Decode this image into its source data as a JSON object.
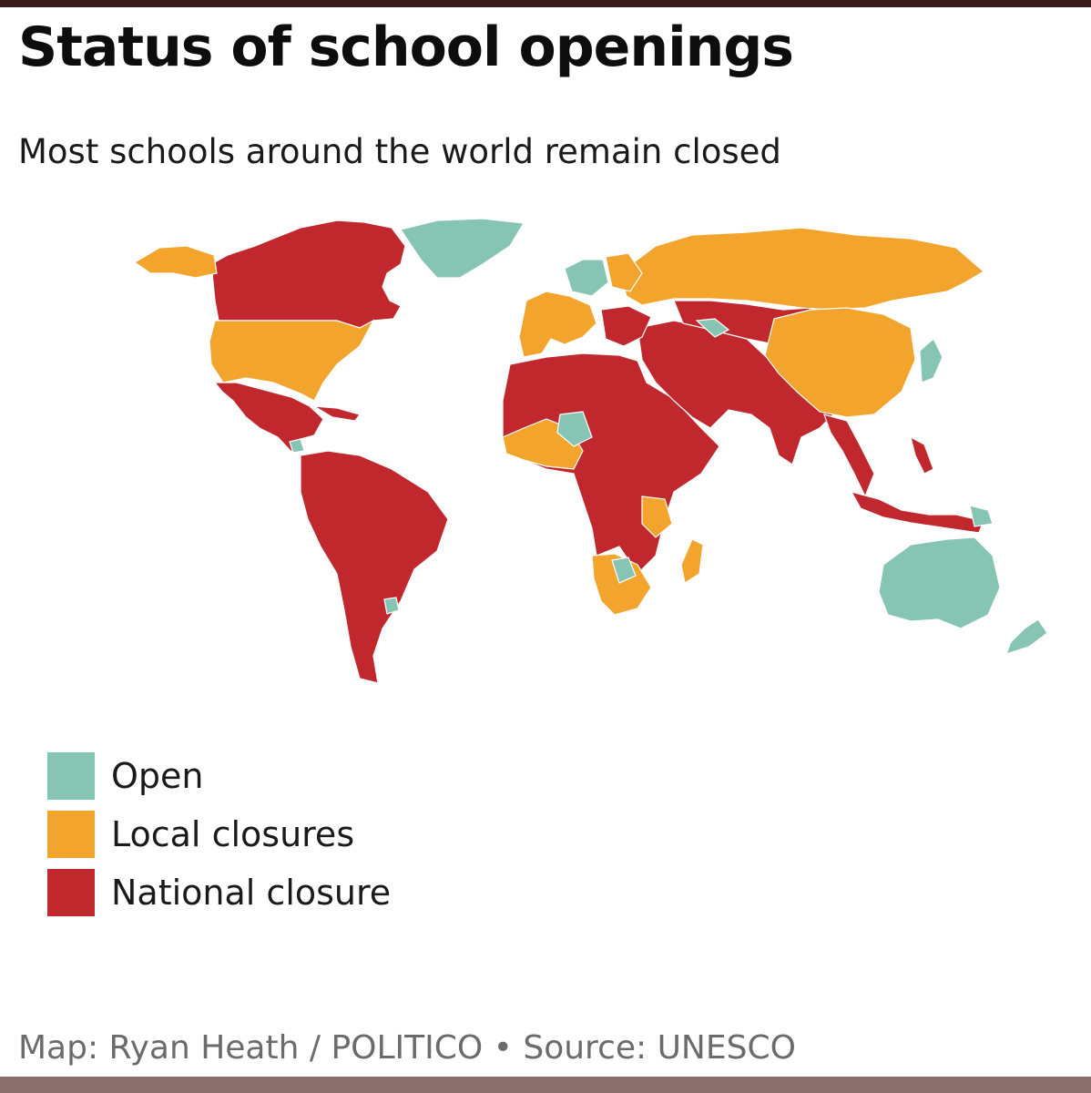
{
  "header": {
    "title": "Status of school openings",
    "subtitle": "Most schools around the world remain closed"
  },
  "colors": {
    "open": "#86c4b3",
    "local": "#f3a42c",
    "national": "#c0282e",
    "border": "#ffffff"
  },
  "legend": [
    {
      "label": "Open",
      "color": "#86c4b3"
    },
    {
      "label": "Local closures",
      "color": "#f3a42c"
    },
    {
      "label": "National closure",
      "color": "#c0282e"
    }
  ],
  "footer": {
    "credit": "Map: Ryan Heath / POLITICO • Source: UNESCO"
  }
}
